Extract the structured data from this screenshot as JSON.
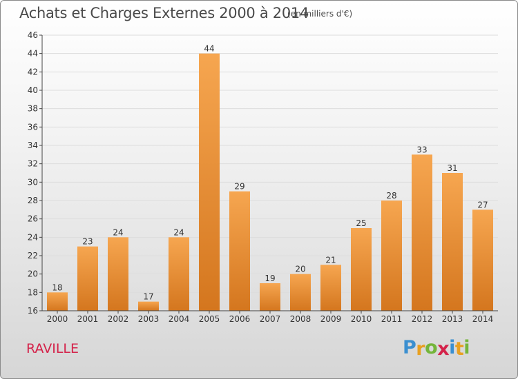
{
  "header": {
    "title": "Achats et Charges Externes 2000 à 2014",
    "subtitle": "(en milliers d'€)"
  },
  "commune": "RAVILLE",
  "logo": {
    "text": "Proxiti",
    "letters": [
      {
        "ch": "P",
        "color": "#3a8fd0"
      },
      {
        "ch": "r",
        "color": "#e8a020"
      },
      {
        "ch": "o",
        "color": "#74b53a"
      },
      {
        "ch": "x",
        "color": "#d4234a"
      },
      {
        "ch": "i",
        "color": "#3a8fd0"
      },
      {
        "ch": "t",
        "color": "#e8a020"
      },
      {
        "ch": "i",
        "color": "#74b53a"
      }
    ]
  },
  "colors": {
    "bar_light": "#f6a650",
    "bar_dark": "#d4761e",
    "axis": "#444444",
    "grid": "#dddddd"
  },
  "chart_data": {
    "type": "bar",
    "title": "Achats et Charges Externes 2000 à 2014",
    "subtitle": "(en milliers d'€)",
    "categories": [
      "2000",
      "2001",
      "2002",
      "2003",
      "2004",
      "2005",
      "2006",
      "2007",
      "2008",
      "2009",
      "2010",
      "2011",
      "2012",
      "2013",
      "2014"
    ],
    "values": [
      18,
      23,
      24,
      17,
      24,
      44,
      29,
      19,
      20,
      21,
      25,
      28,
      33,
      31,
      27
    ],
    "ylim": [
      16,
      46
    ],
    "yticks": [
      16,
      18,
      20,
      22,
      24,
      26,
      28,
      30,
      32,
      34,
      36,
      38,
      40,
      42,
      44,
      46
    ],
    "grid": true,
    "data_labels": true
  }
}
